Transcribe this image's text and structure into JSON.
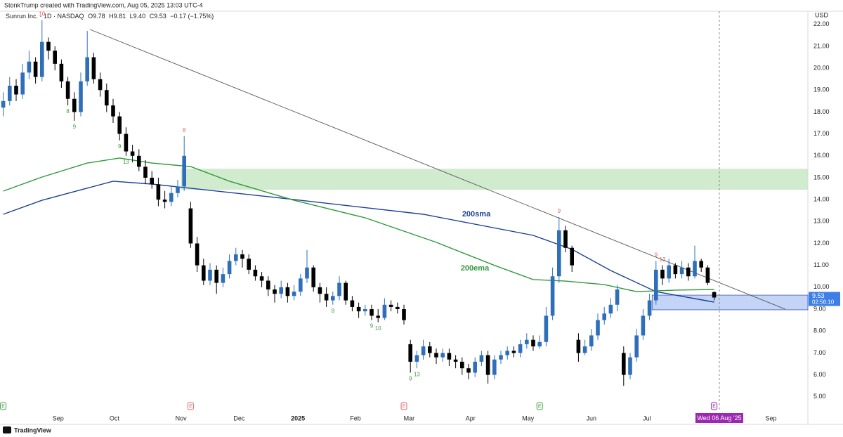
{
  "chart_data": {
    "type": "candlestick",
    "header": "StonkTrump created with TradingView.com, Aug 05, 2025 13:03 UTC-4",
    "symbol": "Sunrun Inc. · 1D · NASDAQ",
    "legend_values": [
      "O9.78",
      "H9.81",
      "L9.40",
      "C9.53",
      "−0.17 (−1.75%)"
    ],
    "y_axis_unit": "USD",
    "footer": "TradingView",
    "up_color": "#2f6fba",
    "down_color": "#000000",
    "xlim": [
      -0.5,
      124.5
    ],
    "ylim": [
      4.35,
      22.6
    ],
    "xticks": [
      {
        "value": 8.5,
        "label": "Sep"
      },
      {
        "value": 17.2,
        "label": "Oct"
      },
      {
        "value": 27.5,
        "label": "Nov"
      },
      {
        "value": 36.5,
        "label": "Dec"
      },
      {
        "value": 45.6,
        "label": "2025",
        "bold": true
      },
      {
        "value": 54.5,
        "label": "Feb"
      },
      {
        "value": 62.8,
        "label": "Mar"
      },
      {
        "value": 72.3,
        "label": "Apr"
      },
      {
        "value": 81.2,
        "label": "May"
      },
      {
        "value": 91.0,
        "label": "Jun"
      },
      {
        "value": 99.6,
        "label": "Jul"
      },
      {
        "value": 118.8,
        "label": "Sep"
      }
    ],
    "yticks": [
      {
        "value": 5,
        "label": "5.00"
      },
      {
        "value": 6,
        "label": "6.00"
      },
      {
        "value": 7,
        "label": "7.00"
      },
      {
        "value": 8,
        "label": "8.00"
      },
      {
        "value": 9,
        "label": "9.00"
      },
      {
        "value": 10,
        "label": "10.00"
      },
      {
        "value": 11,
        "label": "11.00"
      },
      {
        "value": 12,
        "label": "12.00"
      },
      {
        "value": 13,
        "label": "13.00"
      },
      {
        "value": 14,
        "label": "14.00"
      },
      {
        "value": 15,
        "label": "15.00"
      },
      {
        "value": 16,
        "label": "16.00"
      },
      {
        "value": 17,
        "label": "17.00"
      },
      {
        "value": 18,
        "label": "18.00"
      },
      {
        "value": 19,
        "label": "19.00"
      },
      {
        "value": 20,
        "label": "20.00"
      },
      {
        "value": 21,
        "label": "21.00"
      },
      {
        "value": 22,
        "label": "22.00"
      }
    ],
    "open": [
      18.2,
      18.5,
      19.2,
      18.8,
      19.8,
      20.3,
      19.6,
      21.2,
      20.8,
      20.2,
      19.4,
      18.6,
      18.0,
      19.4,
      20.5,
      19.5,
      19.0,
      18.3,
      17.8,
      17.0,
      16.2,
      16.0,
      15.5,
      15.0,
      14.7,
      14.0,
      13.9,
      14.3,
      14.6,
      13.6,
      12.0,
      11.0,
      10.3,
      10.8,
      10.2,
      10.6,
      11.2,
      11.5,
      11.3,
      10.8,
      10.5,
      10.3,
      9.9,
      9.7,
      10.0,
      9.6,
      9.8,
      10.4,
      10.9,
      10.0,
      9.7,
      9.4,
      9.6,
      10.2,
      9.4,
      9.1,
      8.9,
      9.0,
      8.7,
      8.6,
      9.2,
      9.1,
      9.0,
      7.4,
      6.6,
      6.9,
      7.3,
      7.0,
      6.8,
      7.0,
      6.7,
      6.6,
      6.3,
      6.1,
      6.6,
      6.9,
      6.0,
      6.7,
      6.9,
      7.1,
      7.0,
      7.4,
      7.6,
      7.3,
      7.5,
      8.7,
      10.5,
      12.6,
      11.8,
      7.6,
      7.0,
      7.3,
      7.8,
      8.5,
      8.8,
      9.2,
      7.0,
      6.0,
      6.8,
      7.8,
      8.7,
      9.4,
      10.8,
      10.4,
      11.0,
      10.6,
      10.9,
      10.5,
      11.2,
      10.9,
      9.78
    ],
    "high": [
      18.9,
      19.6,
      19.5,
      20.2,
      20.8,
      20.5,
      22.2,
      21.4,
      21.0,
      20.4,
      19.6,
      18.9,
      19.8,
      21.7,
      20.7,
      19.8,
      19.3,
      18.6,
      18.0,
      17.3,
      16.5,
      16.3,
      15.8,
      15.3,
      15.0,
      14.4,
      14.6,
      14.9,
      16.9,
      13.9,
      12.3,
      11.3,
      11.1,
      11.0,
      10.9,
      11.5,
      11.8,
      11.7,
      11.5,
      11.0,
      10.7,
      10.5,
      10.1,
      10.3,
      10.2,
      10.1,
      10.6,
      11.7,
      11.0,
      10.2,
      10.0,
      9.8,
      10.5,
      10.3,
      9.6,
      9.3,
      9.2,
      9.2,
      9.0,
      9.5,
      9.4,
      9.3,
      9.2,
      7.6,
      7.1,
      7.6,
      7.5,
      7.2,
      7.2,
      7.2,
      6.9,
      6.8,
      6.5,
      6.8,
      7.1,
      7.1,
      6.9,
      7.1,
      7.3,
      7.3,
      7.6,
      7.9,
      7.8,
      7.8,
      9.1,
      10.9,
      13.2,
      12.8,
      11.9,
      7.9,
      7.6,
      8.1,
      8.8,
      9.1,
      9.5,
      10.1,
      7.3,
      7.0,
      8.1,
      9.0,
      9.7,
      11.2,
      11.0,
      11.3,
      11.1,
      11.2,
      11.1,
      11.9,
      11.3,
      11.0,
      9.81
    ],
    "low": [
      17.8,
      18.3,
      18.5,
      18.6,
      19.5,
      19.3,
      19.4,
      20.4,
      19.9,
      19.1,
      18.3,
      17.6,
      17.8,
      19.2,
      19.3,
      18.7,
      18.0,
      17.5,
      16.7,
      16.0,
      15.7,
      15.3,
      14.7,
      14.5,
      13.7,
      13.6,
      13.7,
      14.1,
      14.4,
      11.8,
      10.7,
      10.1,
      10.1,
      9.7,
      10.0,
      10.4,
      11.0,
      10.9,
      10.6,
      10.3,
      10.0,
      9.6,
      9.3,
      9.5,
      9.3,
      9.4,
      9.6,
      10.2,
      9.8,
      9.3,
      9.1,
      9.2,
      9.4,
      9.2,
      8.9,
      8.6,
      8.7,
      8.5,
      8.4,
      8.5,
      8.9,
      8.8,
      8.3,
      6.1,
      6.3,
      6.7,
      6.8,
      6.5,
      6.6,
      6.4,
      6.3,
      6.0,
      5.8,
      5.9,
      6.4,
      5.6,
      5.8,
      6.5,
      6.7,
      6.8,
      6.8,
      7.2,
      7.1,
      7.2,
      7.3,
      8.5,
      10.2,
      11.6,
      10.7,
      6.6,
      6.9,
      7.1,
      7.6,
      8.3,
      8.6,
      8.9,
      5.5,
      5.8,
      6.6,
      7.6,
      8.5,
      9.2,
      10.1,
      10.2,
      10.4,
      10.4,
      10.3,
      10.4,
      10.7,
      10.1,
      9.4
    ],
    "close": [
      18.5,
      19.2,
      18.8,
      19.8,
      20.3,
      19.6,
      21.2,
      20.8,
      20.2,
      19.4,
      18.6,
      18.0,
      19.4,
      20.5,
      19.5,
      19.0,
      18.3,
      17.8,
      17.0,
      16.2,
      16.0,
      15.5,
      15.0,
      14.7,
      14.0,
      13.9,
      14.3,
      14.6,
      16.0,
      12.0,
      11.0,
      10.3,
      10.8,
      10.2,
      10.6,
      11.2,
      11.5,
      11.3,
      10.8,
      10.5,
      10.3,
      9.9,
      9.7,
      10.0,
      9.6,
      9.8,
      10.4,
      10.9,
      10.0,
      9.7,
      9.4,
      9.6,
      10.2,
      9.4,
      9.1,
      8.9,
      9.0,
      8.7,
      8.6,
      9.2,
      9.1,
      9.0,
      8.5,
      6.6,
      6.9,
      7.3,
      7.0,
      6.8,
      7.0,
      6.7,
      6.6,
      6.3,
      6.1,
      6.6,
      6.9,
      6.0,
      6.7,
      6.9,
      7.1,
      7.0,
      7.4,
      7.6,
      7.3,
      7.5,
      8.7,
      10.5,
      12.6,
      11.8,
      11.0,
      7.0,
      7.3,
      7.8,
      8.5,
      8.8,
      9.2,
      9.9,
      6.0,
      6.8,
      7.8,
      8.7,
      9.4,
      10.8,
      10.4,
      11.0,
      10.6,
      10.9,
      10.5,
      11.2,
      10.9,
      10.2,
      9.53
    ],
    "lines": [
      {
        "name": "200sma",
        "color": "#1e3f99",
        "x": [
          0,
          6,
          17,
          23,
          29,
          43,
          65,
          82,
          88,
          94,
          101,
          110
        ],
        "values": [
          13.33,
          13.97,
          14.84,
          14.71,
          14.52,
          14.07,
          13.33,
          12.37,
          11.73,
          10.76,
          9.8,
          9.32
        ]
      },
      {
        "name": "200ema",
        "color": "#2e9a3a",
        "x": [
          0,
          6,
          13,
          18,
          23,
          29,
          35,
          45,
          56,
          67,
          76,
          82,
          87,
          93,
          98,
          104,
          110
        ],
        "values": [
          14.39,
          15.03,
          15.67,
          15.9,
          15.67,
          15.51,
          14.84,
          13.97,
          13.17,
          12.05,
          11.0,
          10.35,
          10.28,
          10.12,
          9.8,
          9.87,
          9.9
        ]
      }
    ],
    "trendline": {
      "color": "#555555",
      "x": [
        13.4,
        121
      ],
      "values": [
        21.77,
        9.0
      ]
    },
    "zones": [
      {
        "color": "#c8e8c4",
        "x": [
          27.5,
          124.5
        ],
        "y": [
          14.45,
          15.41
        ]
      },
      {
        "color": "#b9cdf5",
        "x": [
          100.4,
          124.5
        ],
        "y": [
          8.97,
          9.64
        ]
      }
    ],
    "annotations": [
      {
        "text": "10",
        "candle": 6,
        "side": "above",
        "color": "#e06666"
      },
      {
        "text": "8",
        "candle": 10,
        "side": "below",
        "color": "#43a047"
      },
      {
        "text": "9",
        "candle": 11,
        "side": "below",
        "color": "#43a047"
      },
      {
        "text": "9",
        "candle": 18,
        "side": "below",
        "color": "#43a047"
      },
      {
        "text": "13",
        "candle": 19,
        "side": "below",
        "color": "#43a047"
      },
      {
        "text": "8",
        "candle": 28,
        "side": "above",
        "color": "#e06666"
      },
      {
        "text": "8",
        "candle": 51,
        "side": "below",
        "color": "#43a047"
      },
      {
        "text": "9",
        "candle": 57,
        "side": "below",
        "color": "#43a047"
      },
      {
        "text": "10",
        "candle": 58,
        "side": "below",
        "color": "#43a047"
      },
      {
        "text": "9",
        "candle": 63,
        "side": "below",
        "color": "#43a047"
      },
      {
        "text": "13",
        "candle": 64,
        "side": "below",
        "color": "#43a047"
      },
      {
        "text": "9",
        "candle": 86,
        "side": "above",
        "color": "#e06666"
      },
      {
        "text": "9",
        "candle": 101,
        "side": "above",
        "color": "#e06666"
      },
      {
        "text": "13",
        "candle": 102,
        "side": "above",
        "color": "#e06666"
      }
    ],
    "earnings": [
      {
        "candle": 0,
        "label": "E"
      },
      {
        "candle": 29,
        "label": "E"
      },
      {
        "candle": 62,
        "label": "E"
      },
      {
        "candle": 83,
        "label": "E"
      },
      {
        "candle": 110,
        "label": "E"
      }
    ],
    "cursor": {
      "x": 110.8,
      "label": "Wed 06 Aug '25",
      "color": "#9c27b0"
    },
    "last_price_color": "#3d7fe6",
    "countdown": "02:56:10"
  }
}
